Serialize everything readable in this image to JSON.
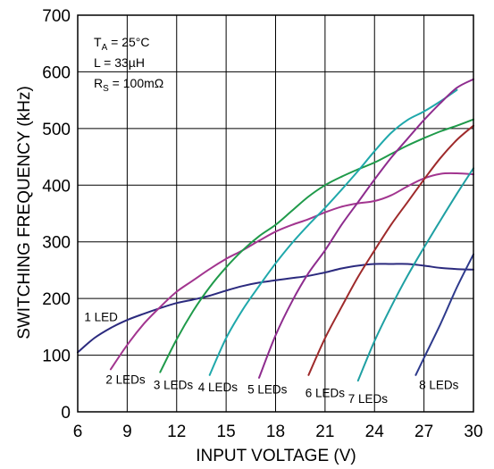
{
  "chart_data": {
    "type": "line",
    "xlabel": "INPUT VOLTAGE (V)",
    "ylabel": "SWITCHING FREQUENCY (kHz)",
    "xlim": [
      6,
      30
    ],
    "ylim": [
      0,
      700
    ],
    "xticks": [
      6,
      9,
      12,
      15,
      18,
      21,
      24,
      27,
      30
    ],
    "yticks": [
      0,
      100,
      200,
      300,
      400,
      500,
      600,
      700
    ],
    "grid": true,
    "conditions": {
      "ta": {
        "main": "T",
        "sub": "A",
        "rest": " = 25°C"
      },
      "l": {
        "main": "L = 33µH"
      },
      "rs": {
        "main": "R",
        "sub": "S",
        "rest": " = 100mΩ"
      }
    },
    "series": [
      {
        "name": "1 LED",
        "color": "#2b2a7e",
        "x": [
          6,
          7,
          8,
          9,
          10,
          11,
          12,
          13,
          14,
          15,
          16,
          17,
          18,
          19,
          20,
          21,
          22,
          23,
          24,
          25,
          26,
          27,
          28,
          29,
          30
        ],
        "y": [
          105,
          130,
          148,
          162,
          173,
          183,
          192,
          198,
          205,
          214,
          222,
          228,
          232,
          236,
          240,
          246,
          253,
          258,
          261,
          261,
          261,
          258,
          254,
          252,
          251
        ]
      },
      {
        "name": "2 LEDs",
        "color": "#a2358f",
        "x": [
          8,
          9,
          10,
          11,
          12,
          13,
          14,
          15,
          16,
          17,
          18,
          19,
          20,
          21,
          22,
          23,
          24,
          25,
          26,
          27,
          28,
          29,
          30
        ],
        "y": [
          75,
          118,
          155,
          185,
          212,
          232,
          252,
          270,
          285,
          302,
          318,
          330,
          340,
          352,
          362,
          368,
          372,
          382,
          398,
          412,
          420,
          421,
          419
        ]
      },
      {
        "name": "3 LEDs",
        "color": "#1f9a4a",
        "x": [
          11,
          12,
          13,
          14,
          15,
          16,
          17,
          18,
          19,
          20,
          21,
          22,
          23,
          24,
          25,
          26,
          27,
          28,
          29,
          30
        ],
        "y": [
          70,
          128,
          178,
          220,
          255,
          285,
          310,
          330,
          355,
          380,
          400,
          415,
          428,
          440,
          455,
          470,
          483,
          495,
          505,
          516
        ]
      },
      {
        "name": "4 LEDs",
        "color": "#1fa8ab",
        "x": [
          14,
          15,
          16,
          17,
          18,
          19,
          20,
          21,
          22,
          23,
          24,
          25,
          26,
          27,
          28,
          29
        ],
        "y": [
          65,
          130,
          180,
          222,
          262,
          298,
          330,
          360,
          392,
          425,
          460,
          492,
          515,
          530,
          548,
          568
        ]
      },
      {
        "name": "5 LEDs",
        "color": "#8e2c8e",
        "x": [
          17,
          18,
          19,
          20,
          21,
          22,
          23,
          24,
          25,
          26,
          27,
          28,
          29,
          30
        ],
        "y": [
          60,
          135,
          195,
          245,
          285,
          330,
          370,
          410,
          448,
          482,
          515,
          545,
          572,
          587
        ]
      },
      {
        "name": "6 LEDs",
        "color": "#9e2a2b",
        "x": [
          20,
          21,
          22,
          23,
          24,
          25,
          26,
          27,
          28,
          29,
          30
        ],
        "y": [
          65,
          130,
          185,
          238,
          285,
          330,
          370,
          410,
          448,
          480,
          505
        ]
      },
      {
        "name": "7 LEDs",
        "color": "#1fa0a3",
        "x": [
          23,
          24,
          25,
          26,
          27,
          28,
          29,
          30
        ],
        "y": [
          55,
          125,
          185,
          240,
          290,
          338,
          385,
          430
        ]
      },
      {
        "name": "8 LEDs",
        "color": "#2e3a8c",
        "x": [
          26.5,
          27,
          28,
          29,
          30
        ],
        "y": [
          65,
          95,
          155,
          220,
          278
        ]
      }
    ],
    "series_labels": [
      {
        "text": "1 LED",
        "x": 6.4,
        "y": 160
      },
      {
        "text": "2 LEDs",
        "x": 7.7,
        "y": 50
      },
      {
        "text": "3 LEDs",
        "x": 10.6,
        "y": 40
      },
      {
        "text": "4 LEDs",
        "x": 13.3,
        "y": 36
      },
      {
        "text": "5 LEDs",
        "x": 16.3,
        "y": 32
      },
      {
        "text": "6 LEDs",
        "x": 19.8,
        "y": 26
      },
      {
        "text": "7 LEDs",
        "x": 22.4,
        "y": 16
      },
      {
        "text": "8 LEDs",
        "x": 26.7,
        "y": 40
      }
    ]
  }
}
